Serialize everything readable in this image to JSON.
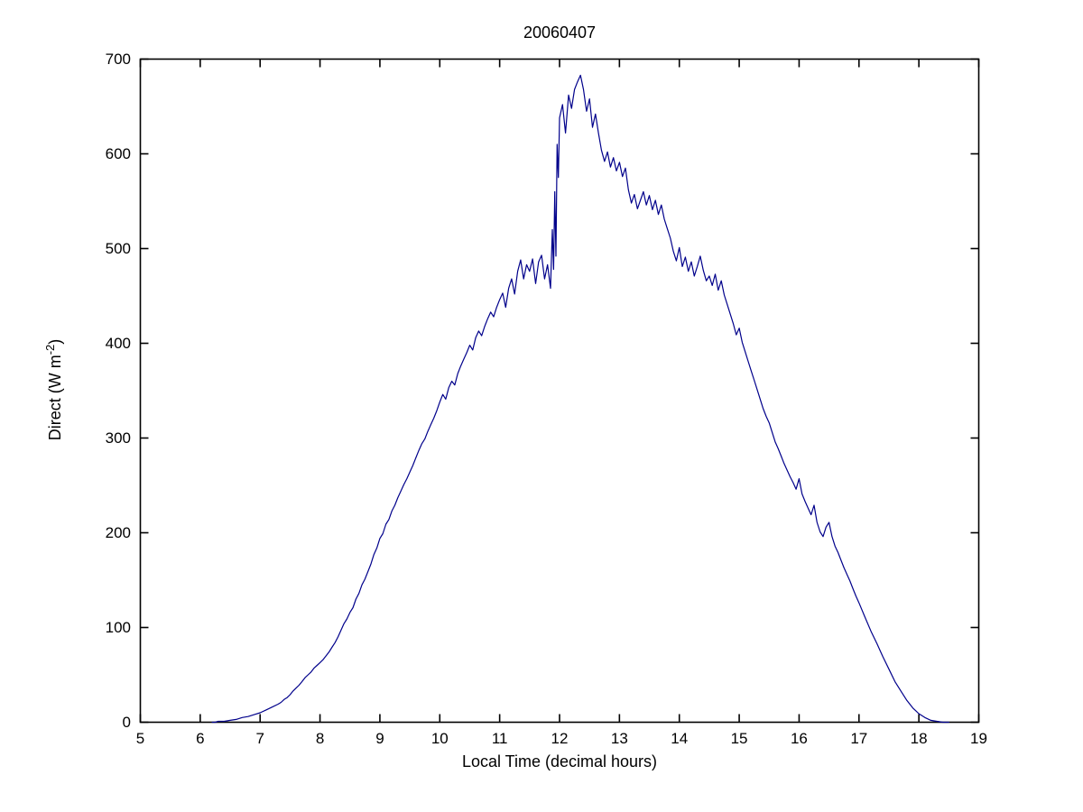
{
  "chart_data": {
    "type": "line",
    "title": "20060407",
    "xlabel": "Local Time (decimal hours)",
    "ylabel": "Direct (W m^-2)",
    "ylabel_parts": {
      "prefix": "Direct (W m",
      "sup": "-2",
      "suffix": ")"
    },
    "xlim": [
      5,
      19
    ],
    "ylim": [
      0,
      700
    ],
    "xticks": [
      5,
      6,
      7,
      8,
      9,
      10,
      11,
      12,
      13,
      14,
      15,
      16,
      17,
      18,
      19
    ],
    "yticks": [
      0,
      100,
      200,
      300,
      400,
      500,
      600,
      700
    ],
    "line_color": "#00008B",
    "axis_color": "#000000",
    "background": "#ffffff",
    "legend": "none",
    "grid": false,
    "points": [
      [
        6.2,
        0
      ],
      [
        6.25,
        0
      ],
      [
        6.3,
        1
      ],
      [
        6.4,
        1
      ],
      [
        6.5,
        2
      ],
      [
        6.6,
        3
      ],
      [
        6.7,
        5
      ],
      [
        6.8,
        6
      ],
      [
        6.9,
        8
      ],
      [
        7.0,
        10
      ],
      [
        7.1,
        13
      ],
      [
        7.2,
        16
      ],
      [
        7.3,
        19
      ],
      [
        7.35,
        21
      ],
      [
        7.4,
        24
      ],
      [
        7.45,
        26
      ],
      [
        7.5,
        29
      ],
      [
        7.55,
        33
      ],
      [
        7.6,
        36
      ],
      [
        7.65,
        39
      ],
      [
        7.7,
        43
      ],
      [
        7.75,
        47
      ],
      [
        7.8,
        50
      ],
      [
        7.85,
        53
      ],
      [
        7.9,
        57
      ],
      [
        7.95,
        60
      ],
      [
        8.0,
        63
      ],
      [
        8.05,
        66
      ],
      [
        8.1,
        70
      ],
      [
        8.15,
        74
      ],
      [
        8.2,
        79
      ],
      [
        8.25,
        84
      ],
      [
        8.3,
        90
      ],
      [
        8.35,
        97
      ],
      [
        8.4,
        104
      ],
      [
        8.45,
        109
      ],
      [
        8.5,
        116
      ],
      [
        8.55,
        121
      ],
      [
        8.6,
        130
      ],
      [
        8.65,
        136
      ],
      [
        8.7,
        145
      ],
      [
        8.75,
        151
      ],
      [
        8.8,
        159
      ],
      [
        8.85,
        167
      ],
      [
        8.9,
        177
      ],
      [
        8.95,
        184
      ],
      [
        9.0,
        194
      ],
      [
        9.05,
        199
      ],
      [
        9.1,
        209
      ],
      [
        9.15,
        214
      ],
      [
        9.2,
        223
      ],
      [
        9.25,
        229
      ],
      [
        9.3,
        237
      ],
      [
        9.35,
        244
      ],
      [
        9.4,
        251
      ],
      [
        9.45,
        257
      ],
      [
        9.5,
        264
      ],
      [
        9.55,
        271
      ],
      [
        9.6,
        279
      ],
      [
        9.65,
        287
      ],
      [
        9.7,
        294
      ],
      [
        9.75,
        299
      ],
      [
        9.8,
        307
      ],
      [
        9.85,
        314
      ],
      [
        9.9,
        321
      ],
      [
        9.95,
        329
      ],
      [
        10.0,
        338
      ],
      [
        10.05,
        346
      ],
      [
        10.1,
        341
      ],
      [
        10.15,
        353
      ],
      [
        10.2,
        360
      ],
      [
        10.25,
        356
      ],
      [
        10.3,
        368
      ],
      [
        10.35,
        376
      ],
      [
        10.4,
        383
      ],
      [
        10.45,
        390
      ],
      [
        10.5,
        398
      ],
      [
        10.55,
        393
      ],
      [
        10.6,
        406
      ],
      [
        10.65,
        413
      ],
      [
        10.7,
        408
      ],
      [
        10.75,
        418
      ],
      [
        10.8,
        426
      ],
      [
        10.85,
        433
      ],
      [
        10.9,
        428
      ],
      [
        10.95,
        438
      ],
      [
        11.0,
        446
      ],
      [
        11.05,
        453
      ],
      [
        11.1,
        438
      ],
      [
        11.15,
        458
      ],
      [
        11.2,
        468
      ],
      [
        11.25,
        452
      ],
      [
        11.3,
        476
      ],
      [
        11.35,
        488
      ],
      [
        11.4,
        468
      ],
      [
        11.45,
        483
      ],
      [
        11.5,
        476
      ],
      [
        11.55,
        489
      ],
      [
        11.6,
        463
      ],
      [
        11.65,
        486
      ],
      [
        11.7,
        493
      ],
      [
        11.75,
        468
      ],
      [
        11.8,
        483
      ],
      [
        11.85,
        458
      ],
      [
        11.88,
        520
      ],
      [
        11.9,
        478
      ],
      [
        11.92,
        560
      ],
      [
        11.94,
        492
      ],
      [
        11.96,
        610
      ],
      [
        11.98,
        575
      ],
      [
        12.0,
        638
      ],
      [
        12.05,
        652
      ],
      [
        12.1,
        622
      ],
      [
        12.15,
        662
      ],
      [
        12.2,
        648
      ],
      [
        12.25,
        668
      ],
      [
        12.3,
        676
      ],
      [
        12.35,
        683
      ],
      [
        12.4,
        668
      ],
      [
        12.45,
        645
      ],
      [
        12.5,
        658
      ],
      [
        12.55,
        628
      ],
      [
        12.6,
        642
      ],
      [
        12.65,
        622
      ],
      [
        12.7,
        604
      ],
      [
        12.75,
        592
      ],
      [
        12.8,
        602
      ],
      [
        12.85,
        586
      ],
      [
        12.9,
        596
      ],
      [
        12.95,
        582
      ],
      [
        13.0,
        591
      ],
      [
        13.05,
        576
      ],
      [
        13.1,
        585
      ],
      [
        13.15,
        562
      ],
      [
        13.2,
        548
      ],
      [
        13.25,
        557
      ],
      [
        13.3,
        542
      ],
      [
        13.35,
        551
      ],
      [
        13.4,
        560
      ],
      [
        13.45,
        546
      ],
      [
        13.5,
        556
      ],
      [
        13.55,
        541
      ],
      [
        13.6,
        551
      ],
      [
        13.65,
        536
      ],
      [
        13.7,
        546
      ],
      [
        13.75,
        531
      ],
      [
        13.8,
        521
      ],
      [
        13.85,
        511
      ],
      [
        13.9,
        497
      ],
      [
        13.95,
        487
      ],
      [
        14.0,
        501
      ],
      [
        14.05,
        481
      ],
      [
        14.1,
        491
      ],
      [
        14.15,
        476
      ],
      [
        14.2,
        486
      ],
      [
        14.25,
        471
      ],
      [
        14.3,
        481
      ],
      [
        14.35,
        492
      ],
      [
        14.4,
        477
      ],
      [
        14.45,
        466
      ],
      [
        14.5,
        471
      ],
      [
        14.55,
        461
      ],
      [
        14.6,
        473
      ],
      [
        14.65,
        456
      ],
      [
        14.7,
        466
      ],
      [
        14.75,
        451
      ],
      [
        14.8,
        441
      ],
      [
        14.85,
        431
      ],
      [
        14.9,
        421
      ],
      [
        14.95,
        409
      ],
      [
        15.0,
        416
      ],
      [
        15.05,
        401
      ],
      [
        15.1,
        391
      ],
      [
        15.15,
        381
      ],
      [
        15.2,
        371
      ],
      [
        15.25,
        361
      ],
      [
        15.3,
        351
      ],
      [
        15.35,
        341
      ],
      [
        15.4,
        331
      ],
      [
        15.45,
        323
      ],
      [
        15.5,
        316
      ],
      [
        15.55,
        306
      ],
      [
        15.6,
        296
      ],
      [
        15.65,
        289
      ],
      [
        15.7,
        281
      ],
      [
        15.75,
        273
      ],
      [
        15.8,
        266
      ],
      [
        15.85,
        259
      ],
      [
        15.9,
        253
      ],
      [
        15.95,
        246
      ],
      [
        16.0,
        257
      ],
      [
        16.05,
        241
      ],
      [
        16.1,
        233
      ],
      [
        16.15,
        226
      ],
      [
        16.2,
        219
      ],
      [
        16.25,
        229
      ],
      [
        16.3,
        211
      ],
      [
        16.35,
        201
      ],
      [
        16.4,
        196
      ],
      [
        16.45,
        206
      ],
      [
        16.5,
        211
      ],
      [
        16.55,
        196
      ],
      [
        16.6,
        186
      ],
      [
        16.65,
        179
      ],
      [
        16.7,
        171
      ],
      [
        16.75,
        163
      ],
      [
        16.8,
        156
      ],
      [
        16.85,
        149
      ],
      [
        16.9,
        141
      ],
      [
        16.95,
        133
      ],
      [
        17.0,
        126
      ],
      [
        17.1,
        111
      ],
      [
        17.2,
        96
      ],
      [
        17.3,
        83
      ],
      [
        17.4,
        69
      ],
      [
        17.5,
        56
      ],
      [
        17.6,
        43
      ],
      [
        17.7,
        33
      ],
      [
        17.8,
        23
      ],
      [
        17.9,
        15
      ],
      [
        18.0,
        9
      ],
      [
        18.1,
        5
      ],
      [
        18.2,
        2
      ],
      [
        18.3,
        1
      ],
      [
        18.4,
        0
      ],
      [
        18.5,
        0
      ]
    ]
  }
}
